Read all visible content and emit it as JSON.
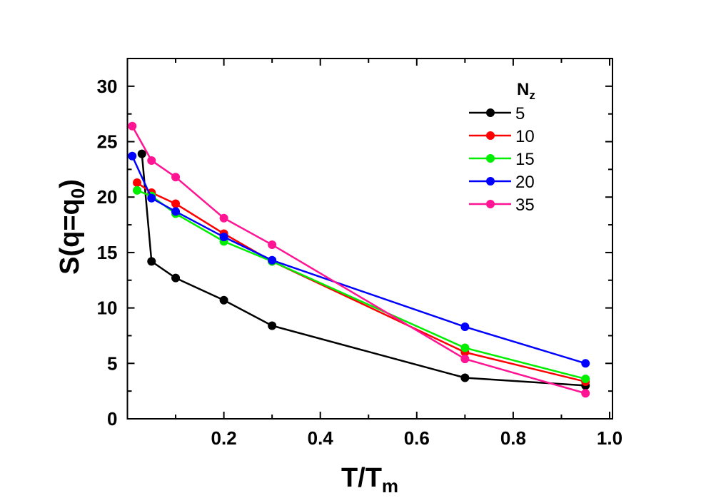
{
  "chart_data": {
    "type": "line",
    "title": "",
    "xlabel": "T/T_m",
    "xlabel_main": "T/T",
    "xlabel_sub": "m",
    "ylabel": "S(q=q_0)",
    "ylabel_main": "S(q=q",
    "ylabel_sub": "0",
    "ylabel_end": ")",
    "xlim": [
      0.0,
      1.0
    ],
    "ylim": [
      0,
      32.5
    ],
    "x_ticks": [
      0.2,
      0.4,
      0.6,
      0.8,
      1.0
    ],
    "x_tick_labels": [
      "0.2",
      "0.4",
      "0.6",
      "0.8",
      "1.0"
    ],
    "y_ticks": [
      0,
      5,
      10,
      15,
      20,
      25,
      30
    ],
    "y_tick_labels": [
      "0",
      "5",
      "10",
      "15",
      "20",
      "25",
      "30"
    ],
    "grid": false,
    "legend_title": "N",
    "legend_title_sub": "z",
    "legend_position": "upper right",
    "series": [
      {
        "name": "5",
        "color": "#000000",
        "x": [
          0.03,
          0.05,
          0.1,
          0.2,
          0.3,
          0.7,
          0.95
        ],
        "values": [
          23.9,
          14.2,
          12.7,
          10.7,
          8.4,
          3.7,
          3.0
        ]
      },
      {
        "name": "10",
        "color": "#ff0000",
        "x": [
          0.02,
          0.05,
          0.1,
          0.2,
          0.3,
          0.7,
          0.95
        ],
        "values": [
          21.3,
          20.4,
          19.4,
          16.7,
          14.2,
          6.0,
          3.35
        ]
      },
      {
        "name": "15",
        "color": "#00ee00",
        "x": [
          0.02,
          0.05,
          0.1,
          0.2,
          0.3,
          0.7,
          0.95
        ],
        "values": [
          20.6,
          20.1,
          18.5,
          16.0,
          14.2,
          6.4,
          3.6
        ]
      },
      {
        "name": "20",
        "color": "#0000ff",
        "x": [
          0.01,
          0.05,
          0.1,
          0.2,
          0.3,
          0.7,
          0.95
        ],
        "values": [
          23.7,
          19.9,
          18.7,
          16.4,
          14.3,
          8.3,
          5.0
        ]
      },
      {
        "name": "35",
        "color": "#ff1493",
        "x": [
          0.01,
          0.05,
          0.1,
          0.2,
          0.3,
          0.7,
          0.95
        ],
        "values": [
          26.4,
          23.3,
          21.8,
          18.1,
          15.7,
          5.4,
          2.3
        ]
      }
    ]
  }
}
